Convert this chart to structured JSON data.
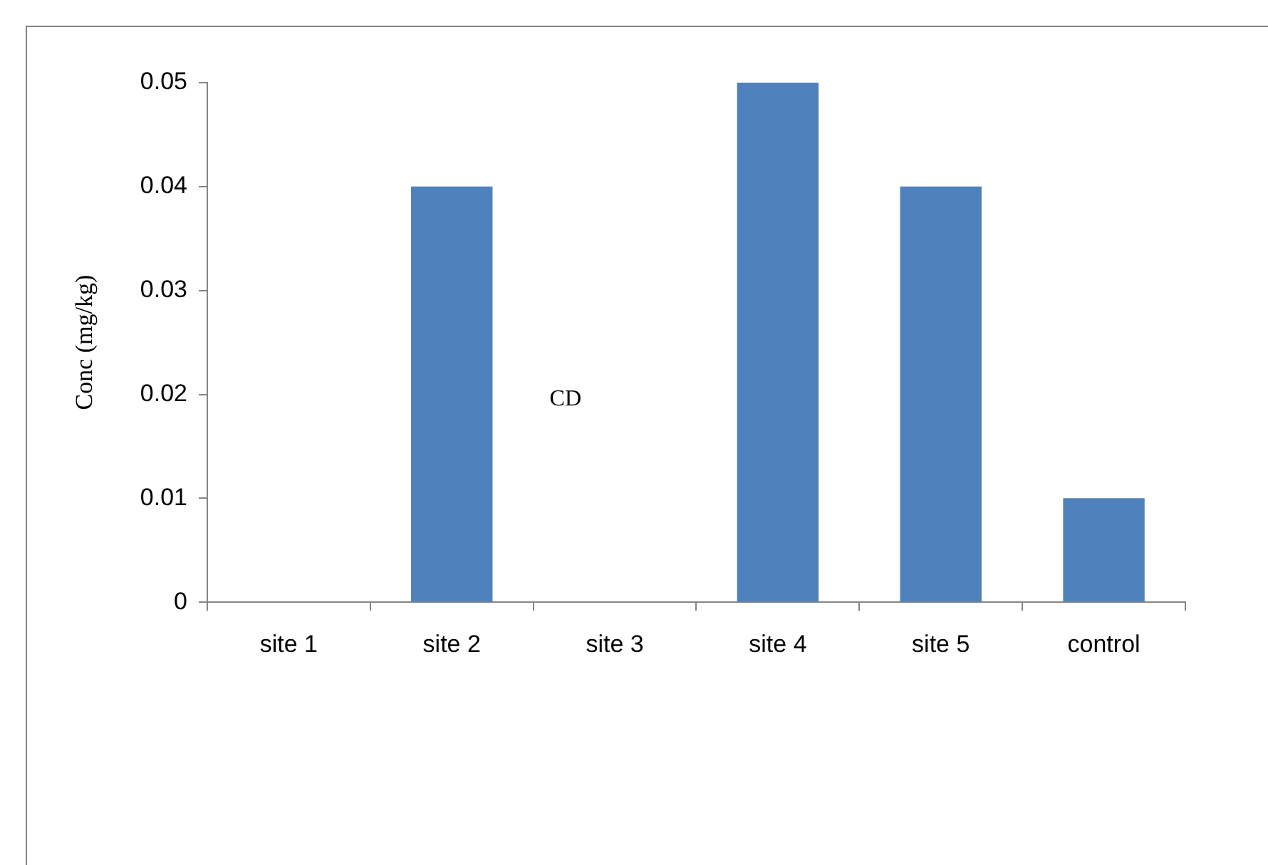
{
  "chart_data": {
    "type": "bar",
    "ylabel": "Conc (mg/kg)",
    "categories": [
      "site 1",
      "site 2",
      "site 3",
      "site 4",
      "site 5",
      "control"
    ],
    "values": [
      0,
      0.04,
      0,
      0.05,
      0.04,
      0.01
    ],
    "color": "#4f81bd",
    "ylim": [
      0,
      0.05
    ],
    "yticks": [
      0,
      0.01,
      0.02,
      0.03,
      0.04,
      0.05
    ],
    "grid": false,
    "legend": false,
    "annotations": [
      "CD"
    ]
  }
}
